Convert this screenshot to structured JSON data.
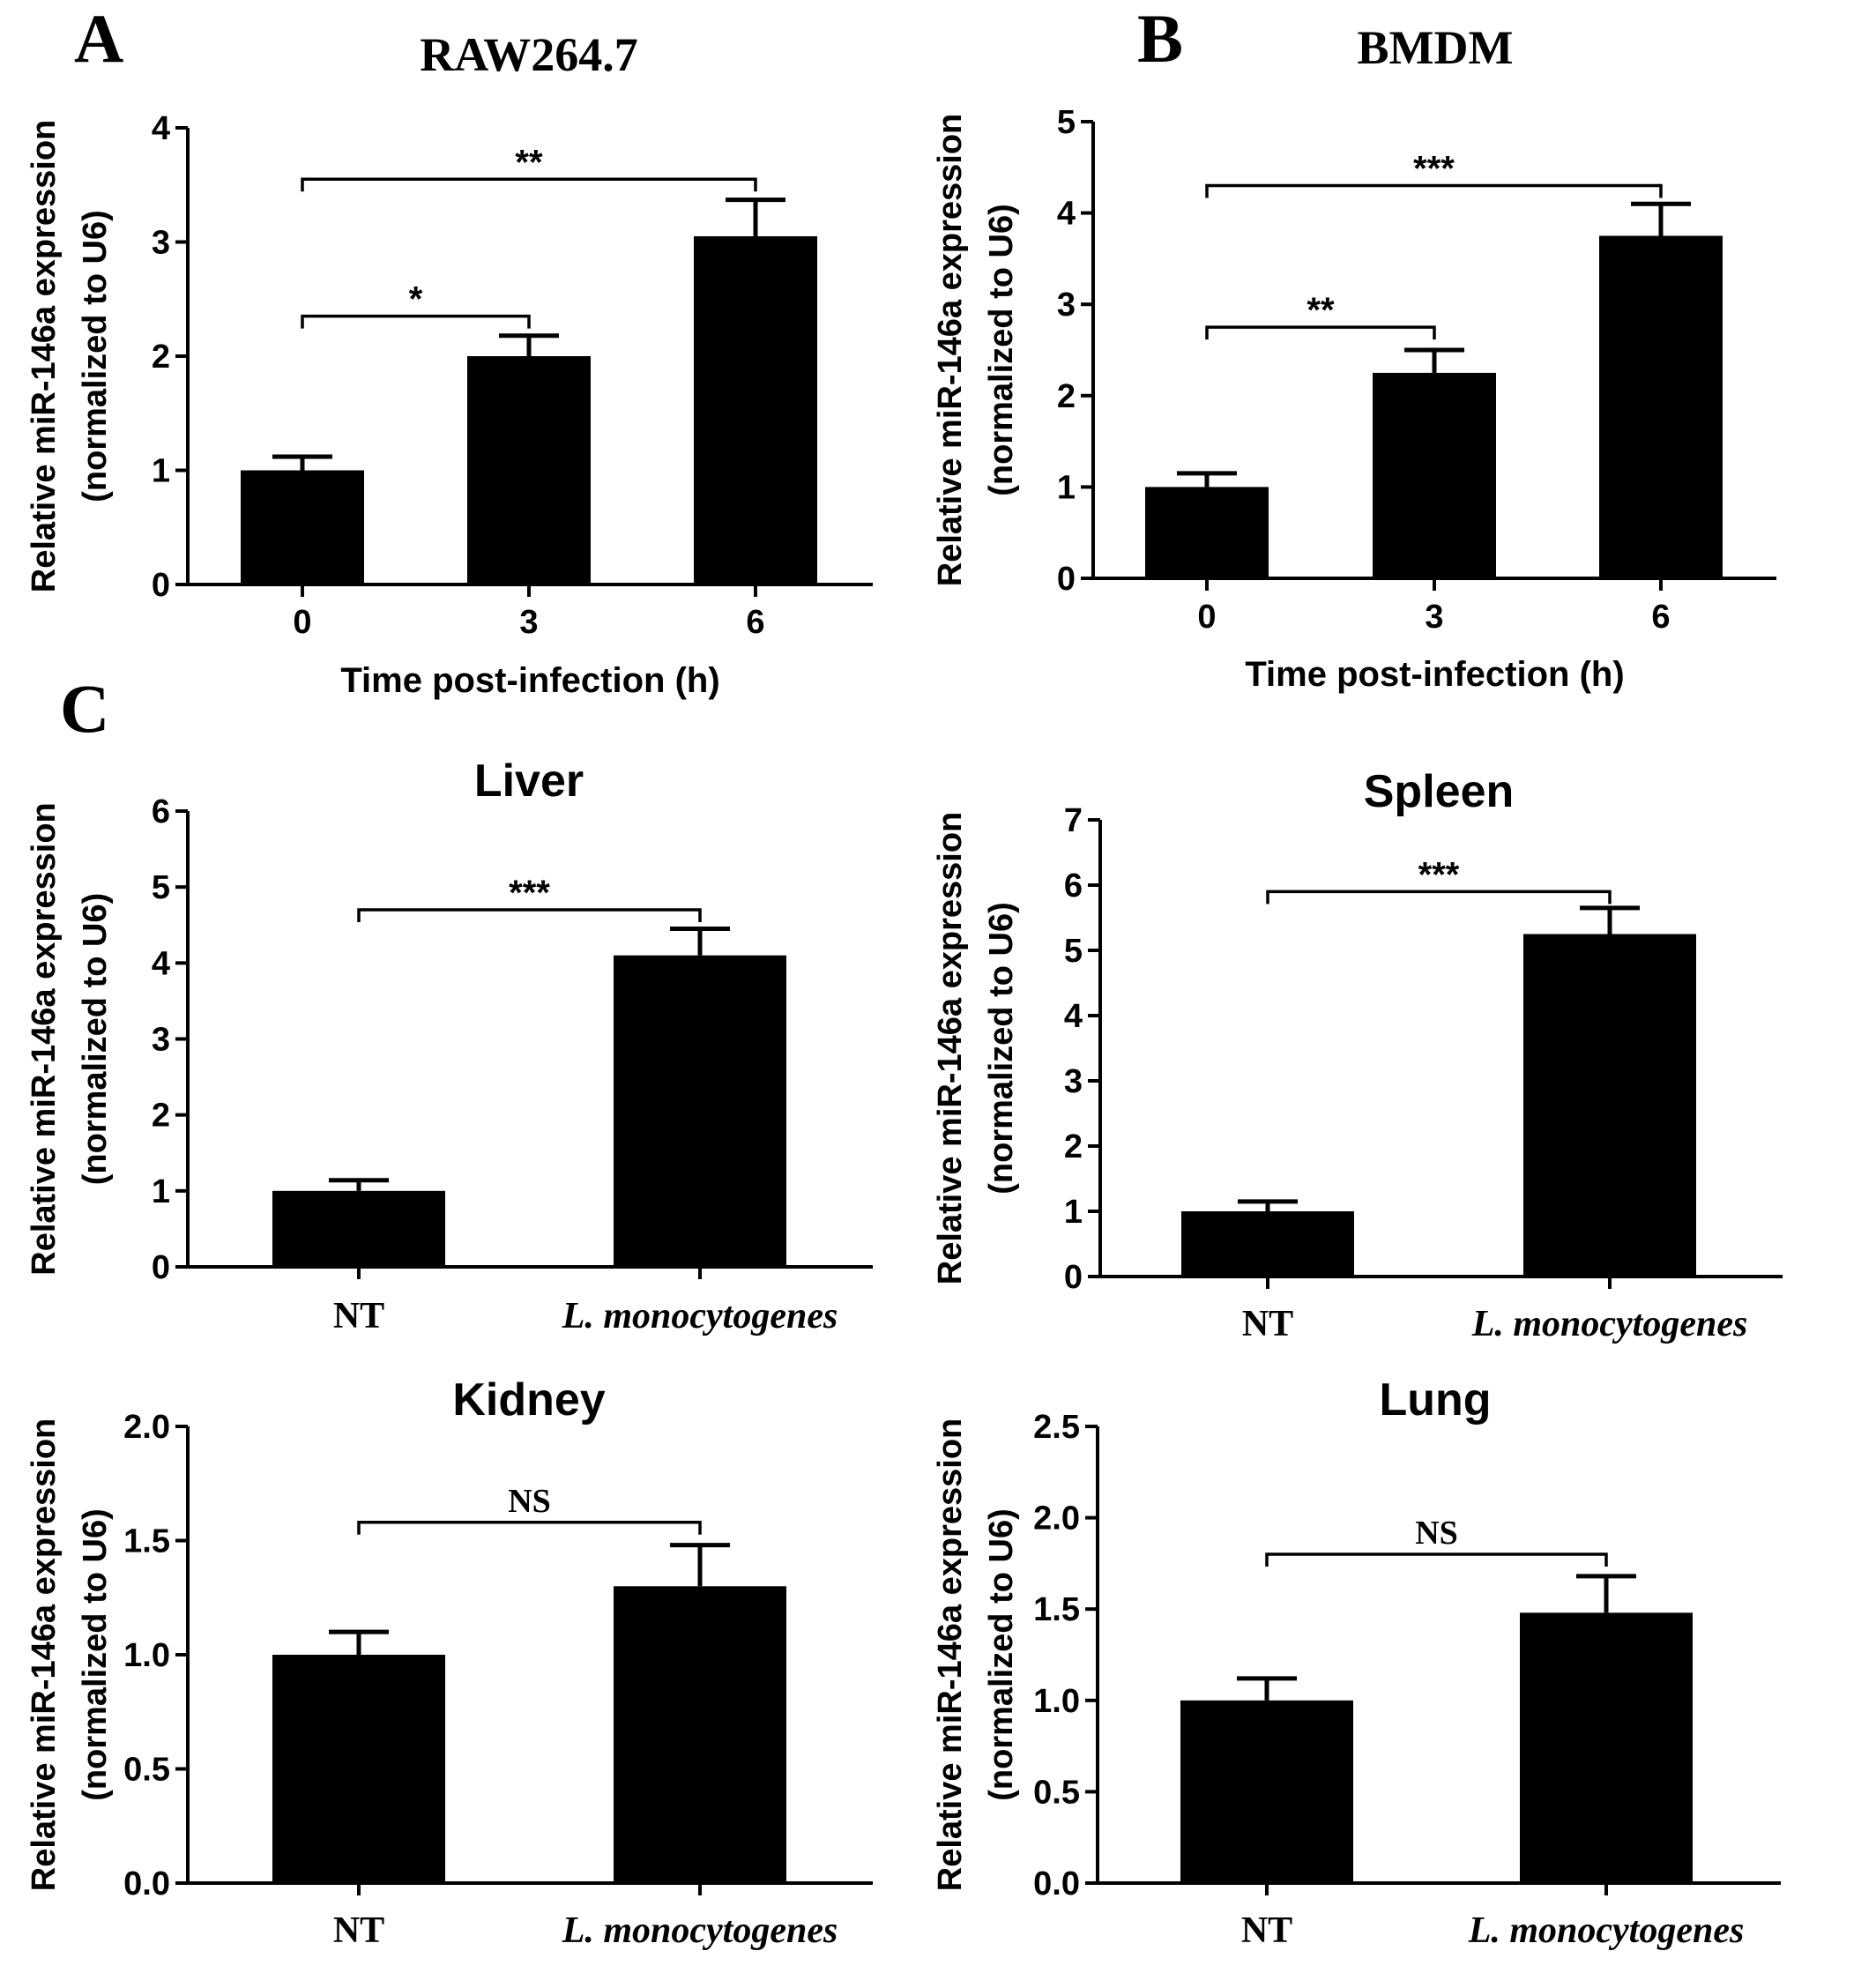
{
  "panel_letters": [
    "A",
    "B",
    "C"
  ],
  "chart_data": [
    {
      "id": "raw",
      "type": "bar",
      "title": "RAW264.7",
      "xlabel": "Time post-infection (h)",
      "ylabel_line1": "Relative miR-146a expression",
      "ylabel_line2": "(normalized to U6)",
      "categories": [
        "0",
        "3",
        "6"
      ],
      "values": [
        1.0,
        2.0,
        3.05
      ],
      "errors": [
        0.12,
        0.18,
        0.32
      ],
      "ylim": [
        0,
        4
      ],
      "yticks": [
        "0",
        "1",
        "2",
        "3",
        "4"
      ],
      "significance": [
        {
          "from": 0,
          "to": 1,
          "label": "*",
          "level": 2.35
        },
        {
          "from": 0,
          "to": 2,
          "label": "**",
          "level": 3.55
        }
      ]
    },
    {
      "id": "bmdm",
      "type": "bar",
      "title": "BMDM",
      "xlabel": "Time post-infection (h)",
      "ylabel_line1": "Relative miR-146a expression",
      "ylabel_line2": "(normalized to U6)",
      "categories": [
        "0",
        "3",
        "6"
      ],
      "values": [
        1.0,
        2.25,
        3.75
      ],
      "errors": [
        0.15,
        0.25,
        0.35
      ],
      "ylim": [
        0,
        5
      ],
      "yticks": [
        "0",
        "1",
        "2",
        "3",
        "4",
        "5"
      ],
      "significance": [
        {
          "from": 0,
          "to": 1,
          "label": "**",
          "level": 2.75
        },
        {
          "from": 0,
          "to": 2,
          "label": "***",
          "level": 4.3
        }
      ]
    },
    {
      "id": "liver",
      "type": "bar",
      "title": "Liver",
      "xlabel": "",
      "ylabel_line1": "Relative miR-146a expression",
      "ylabel_line2": "(normalized to U6)",
      "categories": [
        "NT",
        "L. monocytogenes"
      ],
      "values": [
        1.0,
        4.1
      ],
      "errors": [
        0.14,
        0.35
      ],
      "ylim": [
        0,
        6
      ],
      "yticks": [
        "0",
        "1",
        "2",
        "3",
        "4",
        "5",
        "6"
      ],
      "significance": [
        {
          "from": 0,
          "to": 1,
          "label": "***",
          "level": 4.7
        }
      ]
    },
    {
      "id": "spleen",
      "type": "bar",
      "title": "Spleen",
      "xlabel": "",
      "ylabel_line1": "Relative miR-146a expression",
      "ylabel_line2": "(normalized to U6)",
      "categories": [
        "NT",
        "L. monocytogenes"
      ],
      "values": [
        1.0,
        5.25
      ],
      "errors": [
        0.15,
        0.4
      ],
      "ylim": [
        0,
        7
      ],
      "yticks": [
        "0",
        "1",
        "2",
        "3",
        "4",
        "5",
        "6",
        "7"
      ],
      "significance": [
        {
          "from": 0,
          "to": 1,
          "label": "***",
          "level": 5.9
        }
      ]
    },
    {
      "id": "kidney",
      "type": "bar",
      "title": "Kidney",
      "xlabel": "",
      "ylabel_line1": "Relative miR-146a expression",
      "ylabel_line2": "(normalized to U6)",
      "categories": [
        "NT",
        "L. monocytogenes"
      ],
      "values": [
        1.0,
        1.3
      ],
      "errors": [
        0.1,
        0.18
      ],
      "ylim": [
        0,
        2.0
      ],
      "yticks": [
        "0.0",
        "0.5",
        "1.0",
        "1.5",
        "2.0"
      ],
      "significance": [
        {
          "from": 0,
          "to": 1,
          "label": "NS",
          "level": 1.58
        }
      ]
    },
    {
      "id": "lung",
      "type": "bar",
      "title": "Lung",
      "xlabel": "",
      "ylabel_line1": "Relative miR-146a expression",
      "ylabel_line2": "(normalized to U6)",
      "categories": [
        "NT",
        "L. monocytogenes"
      ],
      "values": [
        1.0,
        1.48
      ],
      "errors": [
        0.12,
        0.2
      ],
      "ylim": [
        0,
        2.5
      ],
      "yticks": [
        "0.0",
        "0.5",
        "1.0",
        "1.5",
        "2.0",
        "2.5"
      ],
      "significance": [
        {
          "from": 0,
          "to": 1,
          "label": "NS",
          "level": 1.8
        }
      ]
    }
  ]
}
